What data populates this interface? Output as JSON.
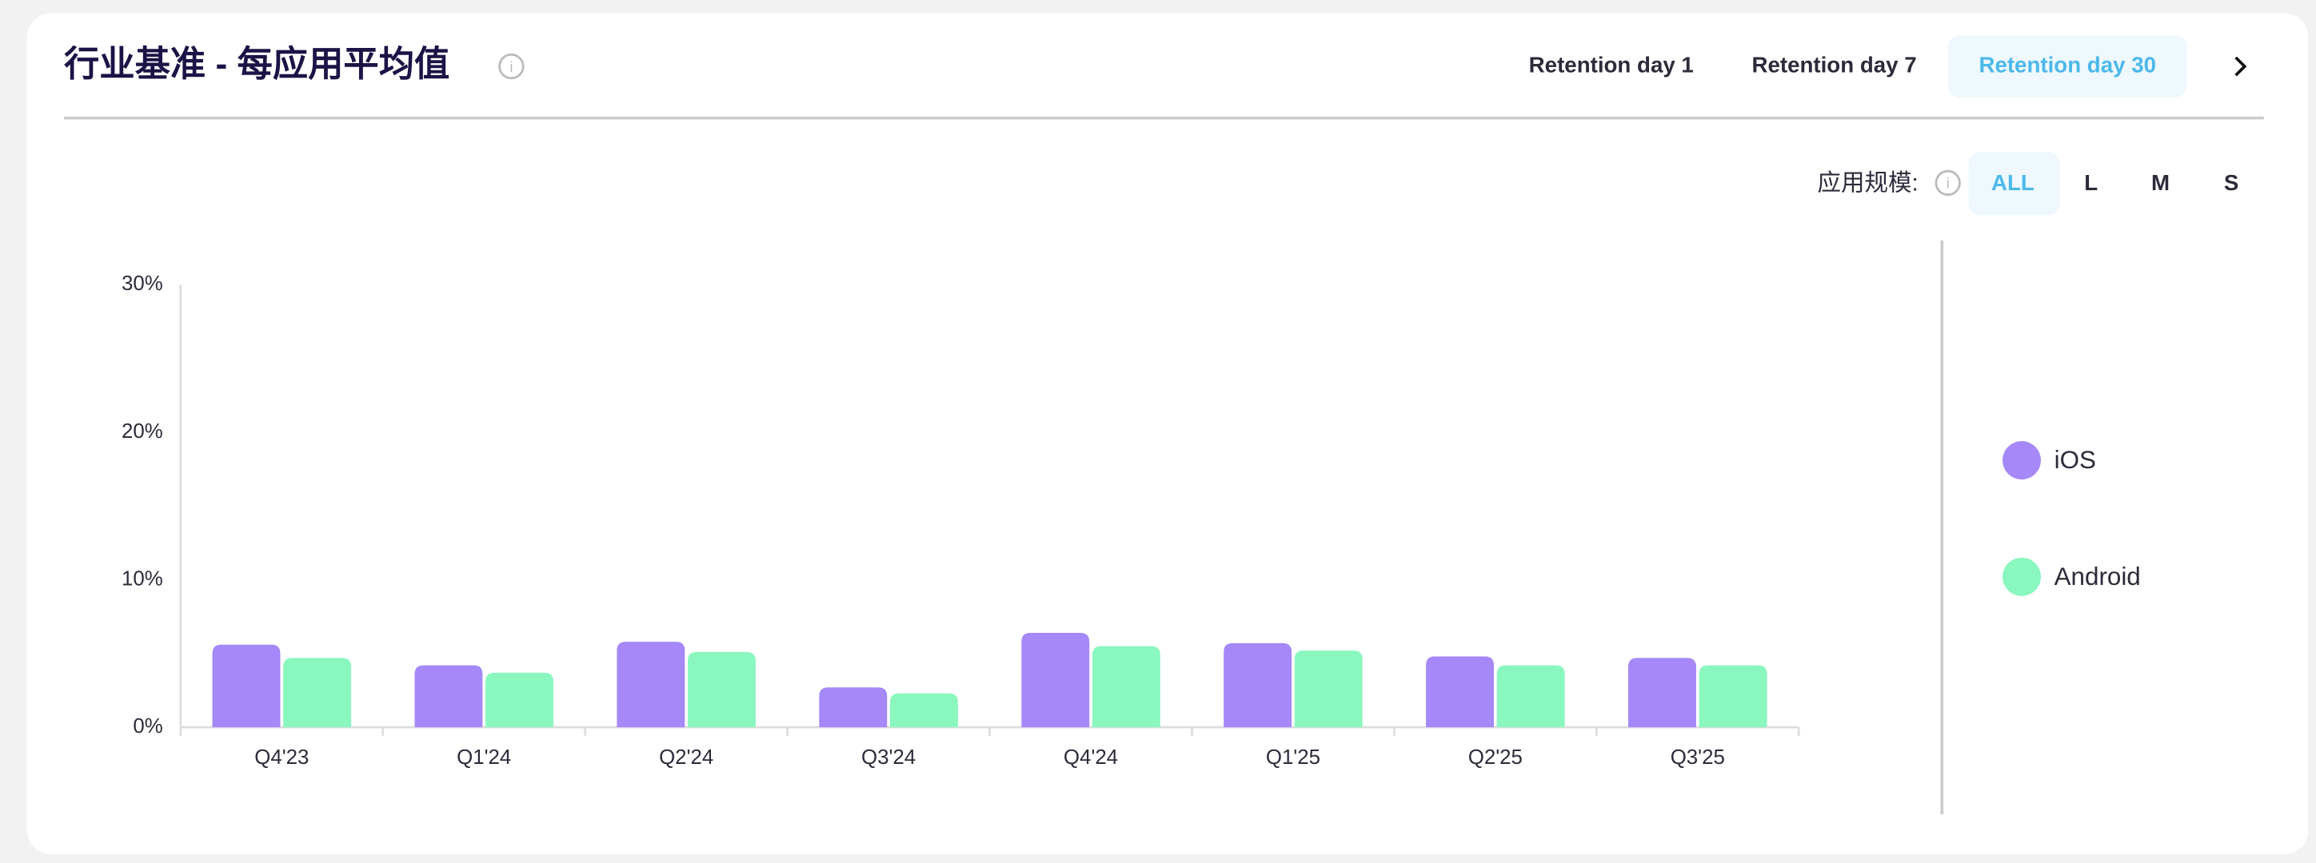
{
  "header": {
    "title": "行业基准 - 每应用平均值",
    "tabs": [
      "Retention day 1",
      "Retention day 7",
      "Retention day 30"
    ]
  },
  "filters": {
    "label": "应用规模:",
    "options": [
      "ALL",
      "L",
      "M",
      "S"
    ]
  },
  "chart_data": {
    "type": "bar",
    "categories": [
      "Q4'23",
      "Q1'24",
      "Q2'24",
      "Q3'24",
      "Q4'24",
      "Q1'25",
      "Q2'25",
      "Q3'25"
    ],
    "series": [
      {
        "name": "iOS",
        "color": "#a688f8",
        "values": [
          5.6,
          4.2,
          5.8,
          2.7,
          6.4,
          5.7,
          4.8,
          4.7
        ]
      },
      {
        "name": "Android",
        "color": "#8af7bf",
        "values": [
          4.7,
          3.7,
          5.1,
          2.3,
          5.5,
          5.2,
          4.2,
          4.2
        ]
      }
    ],
    "ylim": [
      0,
      30
    ],
    "yticks": [
      {
        "value": 0,
        "label": "0%"
      },
      {
        "value": 10,
        "label": "10%"
      },
      {
        "value": 20,
        "label": "20%"
      },
      {
        "value": 30,
        "label": "30%"
      }
    ],
    "grid": false,
    "legend": "right"
  }
}
